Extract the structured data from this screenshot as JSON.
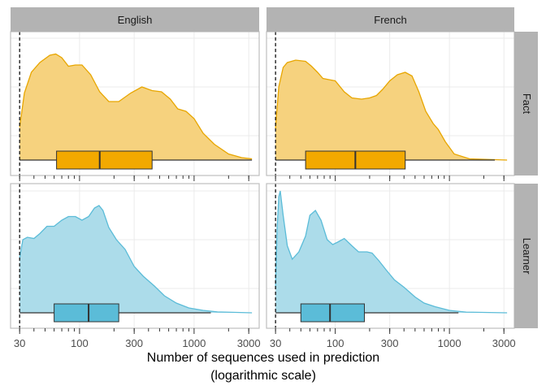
{
  "chart_data": {
    "type": "density-boxplot-facets",
    "xlabel_line1": "Number of sequences used in prediction",
    "xlabel_line2": "(logarithmic scale)",
    "x_scale": "log10",
    "xlim": [
      25,
      3700
    ],
    "x_ticks": [
      {
        "value": 30,
        "label": "30"
      },
      {
        "value": 100,
        "label": "100"
      },
      {
        "value": 300,
        "label": "300"
      },
      {
        "value": 1000,
        "label": "1000"
      },
      {
        "value": 3000,
        "label": "3000"
      }
    ],
    "reference_line_x": 30,
    "col_facets": [
      "English",
      "French"
    ],
    "row_facets": [
      "Fact",
      "Learner"
    ],
    "colors": {
      "Fact": {
        "fill": "#f6d27e",
        "line": "#e8a600",
        "box": "#f2a900"
      },
      "Learner": {
        "fill": "#acdcea",
        "line": "#5bbcd8",
        "box": "#5bbcd8"
      },
      "strip_bg": "#b3b3b3",
      "panel_border": "#bfbfbf",
      "grid": "#ebebeb"
    },
    "panels": [
      {
        "col": "English",
        "row": "Fact",
        "density": [
          [
            30,
            0.27
          ],
          [
            33,
            0.55
          ],
          [
            38,
            0.72
          ],
          [
            45,
            0.8
          ],
          [
            55,
            0.86
          ],
          [
            62,
            0.87
          ],
          [
            70,
            0.84
          ],
          [
            80,
            0.77
          ],
          [
            92,
            0.78
          ],
          [
            105,
            0.78
          ],
          [
            125,
            0.7
          ],
          [
            150,
            0.56
          ],
          [
            180,
            0.48
          ],
          [
            220,
            0.48
          ],
          [
            280,
            0.55
          ],
          [
            350,
            0.6
          ],
          [
            430,
            0.57
          ],
          [
            520,
            0.56
          ],
          [
            620,
            0.5
          ],
          [
            720,
            0.42
          ],
          [
            850,
            0.4
          ],
          [
            1000,
            0.34
          ],
          [
            1200,
            0.22
          ],
          [
            1500,
            0.13
          ],
          [
            2000,
            0.05
          ],
          [
            2600,
            0.02
          ],
          [
            3200,
            0.01
          ]
        ],
        "box": {
          "q1": 63,
          "median": 150,
          "q3": 430
        },
        "whisker": [
          30,
          3200
        ]
      },
      {
        "col": "French",
        "row": "Fact",
        "density": [
          [
            30,
            0.26
          ],
          [
            32,
            0.6
          ],
          [
            35,
            0.76
          ],
          [
            38,
            0.8
          ],
          [
            45,
            0.82
          ],
          [
            55,
            0.81
          ],
          [
            62,
            0.77
          ],
          [
            70,
            0.72
          ],
          [
            78,
            0.67
          ],
          [
            88,
            0.66
          ],
          [
            100,
            0.65
          ],
          [
            120,
            0.56
          ],
          [
            140,
            0.51
          ],
          [
            170,
            0.5
          ],
          [
            200,
            0.51
          ],
          [
            230,
            0.53
          ],
          [
            260,
            0.58
          ],
          [
            300,
            0.65
          ],
          [
            350,
            0.7
          ],
          [
            410,
            0.72
          ],
          [
            470,
            0.69
          ],
          [
            540,
            0.56
          ],
          [
            620,
            0.4
          ],
          [
            720,
            0.3
          ],
          [
            800,
            0.25
          ],
          [
            920,
            0.15
          ],
          [
            1100,
            0.05
          ],
          [
            1500,
            0.01
          ],
          [
            3200,
            0.0
          ]
        ],
        "box": {
          "q1": 55,
          "median": 150,
          "q3": 410
        },
        "whisker": [
          30,
          2500
        ]
      },
      {
        "col": "English",
        "row": "Learner",
        "density": [
          [
            30,
            0.45
          ],
          [
            32,
            0.6
          ],
          [
            35,
            0.62
          ],
          [
            40,
            0.61
          ],
          [
            45,
            0.65
          ],
          [
            52,
            0.71
          ],
          [
            60,
            0.71
          ],
          [
            70,
            0.76
          ],
          [
            80,
            0.79
          ],
          [
            92,
            0.79
          ],
          [
            105,
            0.76
          ],
          [
            120,
            0.79
          ],
          [
            135,
            0.86
          ],
          [
            148,
            0.88
          ],
          [
            160,
            0.84
          ],
          [
            180,
            0.7
          ],
          [
            210,
            0.6
          ],
          [
            250,
            0.52
          ],
          [
            300,
            0.38
          ],
          [
            360,
            0.3
          ],
          [
            450,
            0.22
          ],
          [
            550,
            0.14
          ],
          [
            700,
            0.08
          ],
          [
            900,
            0.04
          ],
          [
            1200,
            0.02
          ],
          [
            1600,
            0.007
          ],
          [
            3200,
            0.0
          ]
        ],
        "box": {
          "q1": 60,
          "median": 120,
          "q3": 220
        },
        "whisker": [
          30,
          1400
        ]
      },
      {
        "col": "French",
        "row": "Learner",
        "density": [
          [
            30,
            0.2
          ],
          [
            31,
            0.7
          ],
          [
            32,
            0.95
          ],
          [
            33,
            1.0
          ],
          [
            35,
            0.8
          ],
          [
            38,
            0.55
          ],
          [
            42,
            0.44
          ],
          [
            48,
            0.5
          ],
          [
            55,
            0.63
          ],
          [
            60,
            0.8
          ],
          [
            67,
            0.84
          ],
          [
            75,
            0.76
          ],
          [
            85,
            0.6
          ],
          [
            95,
            0.56
          ],
          [
            105,
            0.58
          ],
          [
            120,
            0.61
          ],
          [
            140,
            0.55
          ],
          [
            160,
            0.5
          ],
          [
            190,
            0.5
          ],
          [
            210,
            0.49
          ],
          [
            240,
            0.43
          ],
          [
            280,
            0.35
          ],
          [
            330,
            0.27
          ],
          [
            400,
            0.21
          ],
          [
            500,
            0.13
          ],
          [
            600,
            0.08
          ],
          [
            750,
            0.05
          ],
          [
            1000,
            0.02
          ],
          [
            1400,
            0.006
          ],
          [
            3200,
            0.0
          ]
        ],
        "box": {
          "q1": 50,
          "median": 90,
          "q3": 180
        },
        "whisker": [
          30,
          1200
        ]
      }
    ]
  }
}
